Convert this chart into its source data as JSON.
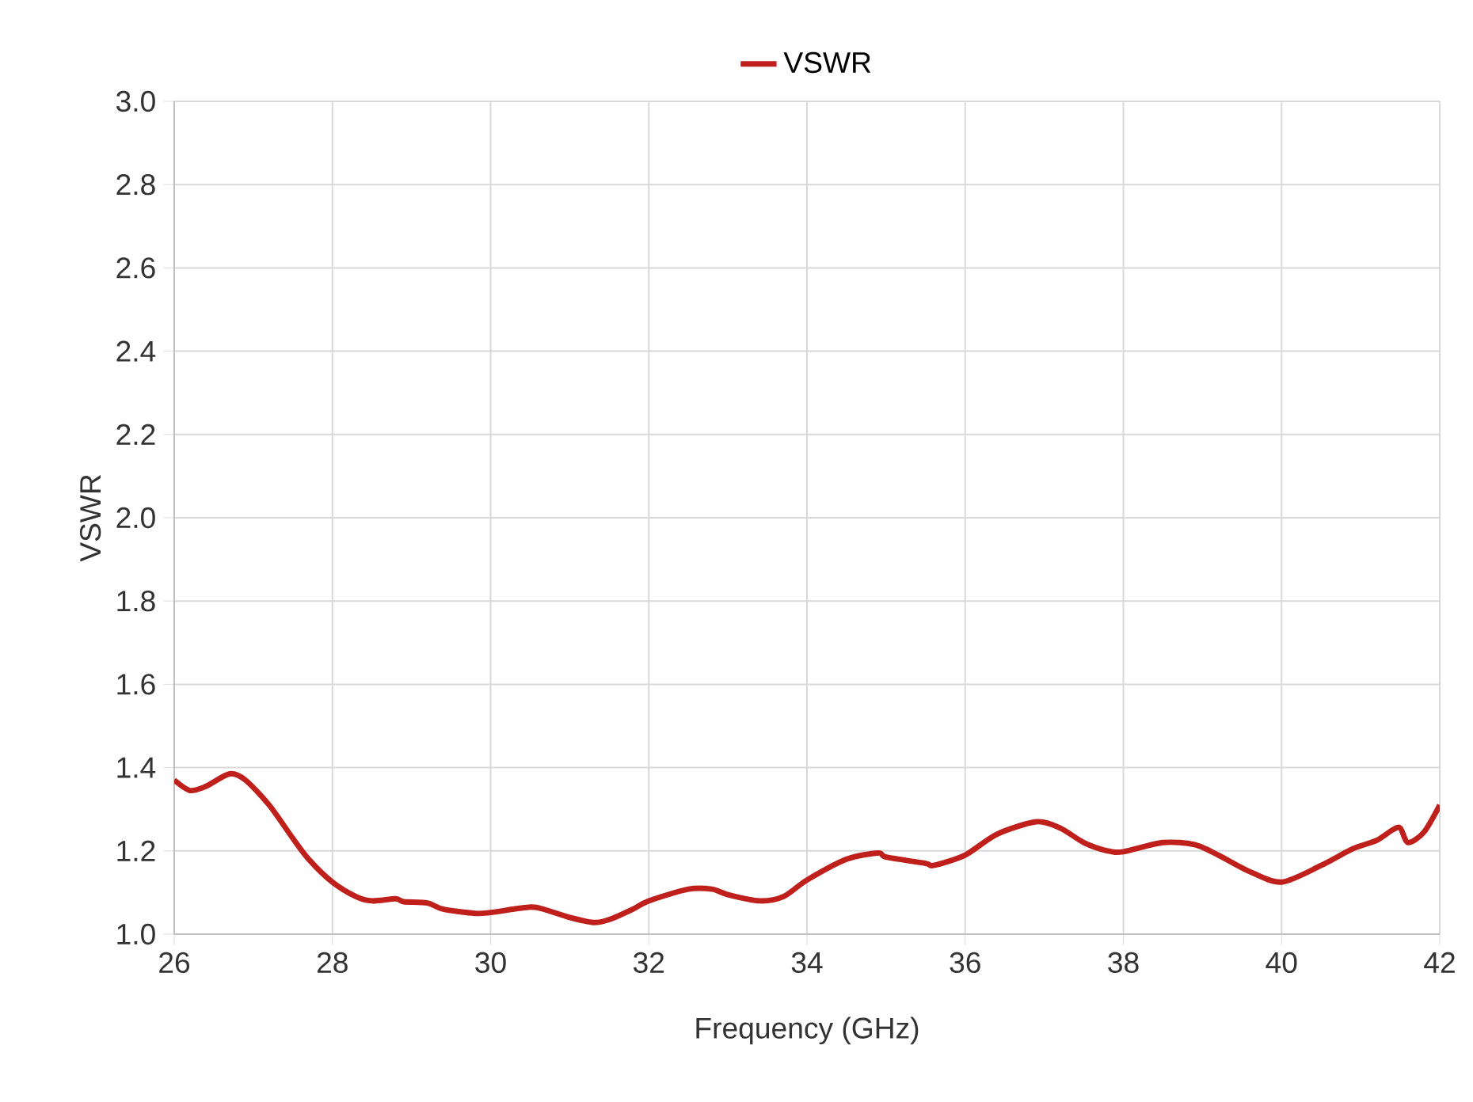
{
  "chart_data": {
    "type": "line",
    "xlabel": "Frequency (GHz)",
    "ylabel": "VSWR",
    "series": [
      {
        "name": "VSWR",
        "color": "#c0201c",
        "x": [
          26.0,
          26.2,
          26.4,
          26.7,
          26.9,
          27.2,
          27.5,
          27.7,
          28.0,
          28.3,
          28.5,
          28.8,
          28.9,
          29.2,
          29.4,
          29.8,
          30.0,
          30.5,
          30.7,
          31.0,
          31.3,
          31.5,
          31.8,
          32.0,
          32.5,
          32.8,
          33.0,
          33.4,
          33.7,
          34.0,
          34.5,
          34.9,
          35.0,
          35.5,
          35.6,
          36.0,
          36.4,
          36.9,
          37.2,
          37.5,
          37.8,
          38.0,
          38.5,
          38.9,
          39.2,
          39.6,
          40.0,
          40.5,
          40.9,
          41.2,
          41.4,
          41.5,
          41.6,
          41.8,
          42.0
        ],
        "values": [
          1.37,
          1.345,
          1.355,
          1.385,
          1.37,
          1.31,
          1.23,
          1.18,
          1.125,
          1.09,
          1.08,
          1.085,
          1.078,
          1.075,
          1.06,
          1.05,
          1.052,
          1.065,
          1.058,
          1.04,
          1.028,
          1.035,
          1.06,
          1.08,
          1.108,
          1.108,
          1.095,
          1.08,
          1.09,
          1.13,
          1.18,
          1.195,
          1.185,
          1.17,
          1.165,
          1.19,
          1.24,
          1.27,
          1.255,
          1.22,
          1.2,
          1.198,
          1.22,
          1.215,
          1.19,
          1.15,
          1.125,
          1.165,
          1.205,
          1.225,
          1.25,
          1.255,
          1.22,
          1.245,
          1.31
        ]
      }
    ],
    "xlim": [
      26,
      42
    ],
    "ylim": [
      1.0,
      3.0
    ],
    "xticks": [
      26,
      28,
      30,
      32,
      34,
      36,
      38,
      40,
      42
    ],
    "yticks": [
      {
        "value": 1.0,
        "label": "1.0"
      },
      {
        "value": 1.2,
        "label": "1.2"
      },
      {
        "value": 1.4,
        "label": "1.4"
      },
      {
        "value": 1.6,
        "label": "1.6"
      },
      {
        "value": 1.8,
        "label": "1.8"
      },
      {
        "value": 2.0,
        "label": "2.0"
      },
      {
        "value": 2.2,
        "label": "2.2"
      },
      {
        "value": 2.4,
        "label": "2.4"
      },
      {
        "value": 2.6,
        "label": "2.6"
      },
      {
        "value": 2.8,
        "label": "2.8"
      },
      {
        "value": 3.0,
        "label": "3.0"
      }
    ],
    "grid": true,
    "legend": "top",
    "marker": "none",
    "line_style": "solid"
  }
}
